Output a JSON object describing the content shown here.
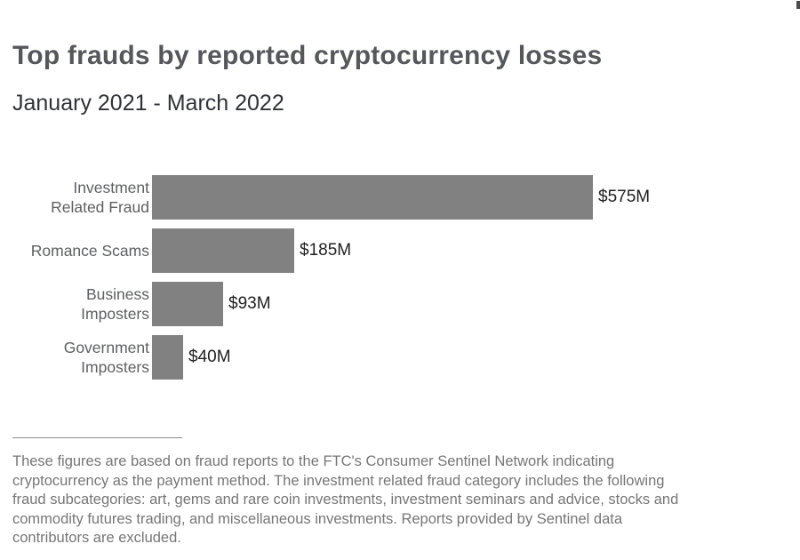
{
  "chart_data": {
    "type": "bar",
    "orientation": "horizontal",
    "title": "Top frauds by reported cryptocurrency losses",
    "subtitle": "January 2021 - March 2022",
    "categories": [
      "Investment\nRelated Fraud",
      "Romance Scams",
      "Business\nImposters",
      "Government\nImposters"
    ],
    "values": [
      575,
      185,
      93,
      40
    ],
    "value_labels": [
      "$575M",
      "$185M",
      "$93M",
      "$40M"
    ],
    "xlim": [
      0,
      575
    ],
    "bar_color": "#818181",
    "grid": false,
    "legend": false
  },
  "footnote": {
    "lines": [
      "These figures are based on fraud reports to the FTC's Consumer Sentinel Network indicating",
      "cryptocurrency as the payment method. The investment related fraud category includes the following",
      "fraud subcategories: art, gems and rare coin investments, investment seminars and advice, stocks and",
      "commodity futures trading, and miscellaneous investments. Reports provided by Sentinel data",
      "contributors are excluded."
    ]
  }
}
